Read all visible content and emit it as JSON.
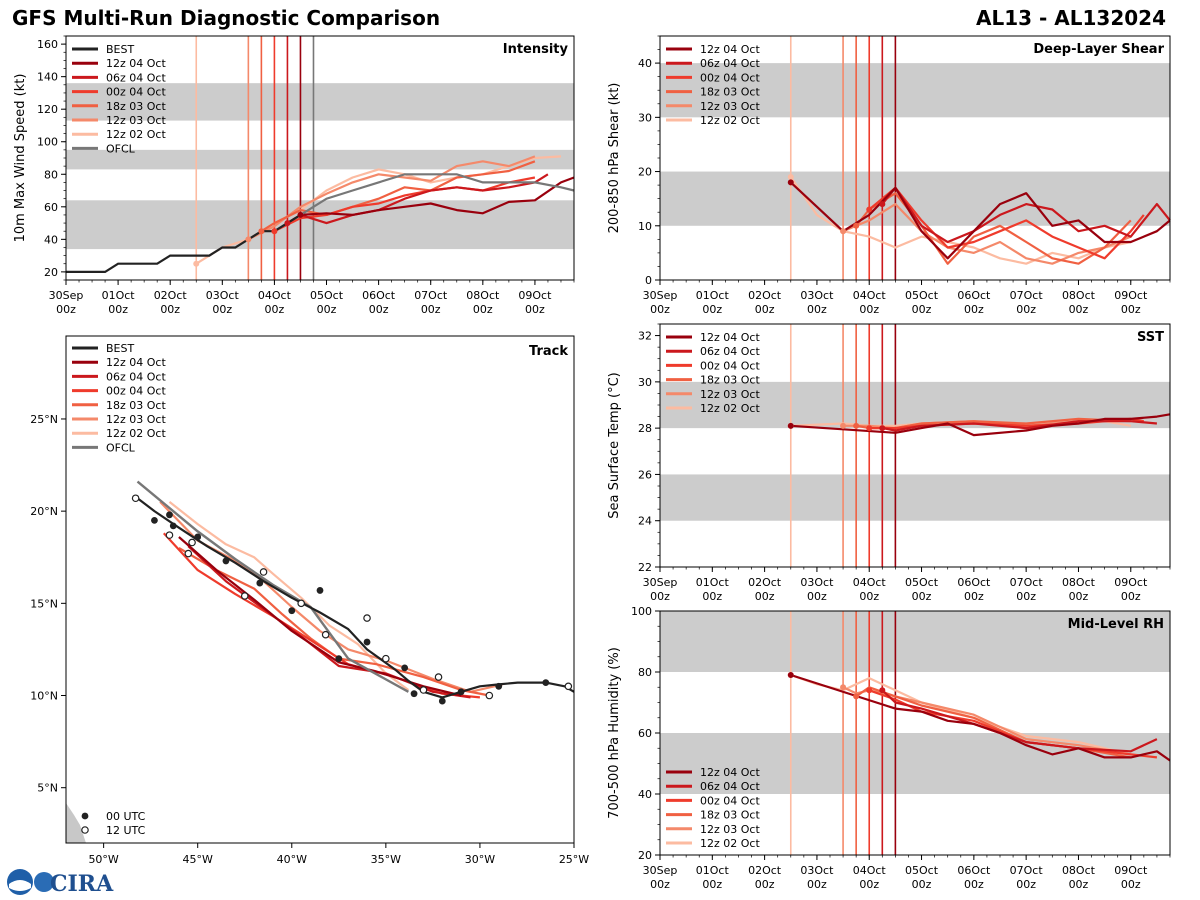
{
  "title_left": "GFS Multi-Run Diagnostic Comparison",
  "title_right": "AL13 - AL132024",
  "logo_text": "CIRA",
  "time_axis": {
    "ticks": [
      "30Sep\n00z",
      "01Oct\n00z",
      "02Oct\n00z",
      "03Oct\n00z",
      "04Oct\n00z",
      "05Oct\n00z",
      "06Oct\n00z",
      "07Oct\n00z",
      "08Oct\n00z",
      "09Oct\n00z"
    ],
    "range_days": [
      0,
      9.75
    ]
  },
  "runs": [
    {
      "label": "12z 04 Oct",
      "color": "#99000d",
      "init_day": 4.5
    },
    {
      "label": "06z 04 Oct",
      "color": "#cb181d",
      "init_day": 4.25
    },
    {
      "label": "00z 04 Oct",
      "color": "#ef3b2c",
      "init_day": 4.0
    },
    {
      "label": "18z 03 Oct",
      "color": "#f06042",
      "init_day": 3.75
    },
    {
      "label": "12z 03 Oct",
      "color": "#f4896a",
      "init_day": 3.5
    },
    {
      "label": "12z 02 Oct",
      "color": "#fcbba1",
      "init_day": 2.5
    }
  ],
  "best_label": "BEST",
  "best_color": "#222222",
  "ofcl_label": "OFCL",
  "ofcl_color": "#777777",
  "utc_legend": {
    "a": "00 UTC",
    "b": "12 UTC"
  },
  "chart_data": [
    {
      "type": "line",
      "name": "intensity",
      "title": "Intensity",
      "ylabel": "10m Max Wind Speed (kt)",
      "ylim": [
        15,
        165
      ],
      "yticks": [
        20,
        40,
        60,
        80,
        100,
        120,
        140,
        160
      ],
      "bands": [
        [
          34,
          64
        ],
        [
          83,
          95
        ],
        [
          113,
          136
        ]
      ],
      "ofcl_vline_day": 4.75,
      "best": {
        "x": [
          0,
          0.75,
          1,
          1.75,
          2,
          2.75,
          3,
          3.25,
          3.5,
          3.75,
          4,
          4.25,
          4.5
        ],
        "y": [
          20,
          20,
          25,
          25,
          30,
          30,
          35,
          35,
          40,
          45,
          45,
          50,
          55
        ]
      },
      "ofcl": {
        "x": [
          4.5,
          4.75,
          5,
          5.5,
          6,
          6.5,
          7,
          7.5,
          8,
          8.5,
          9,
          9.5,
          9.75
        ],
        "y": [
          55,
          60,
          65,
          70,
          75,
          80,
          80,
          80,
          75,
          75,
          75,
          72,
          70
        ]
      },
      "series": [
        {
          "x": [
            2.5,
            3,
            3.5,
            4,
            4.5,
            5,
            5.5,
            6,
            6.5,
            7,
            7.5,
            8,
            8.5,
            9,
            9.5
          ],
          "y": [
            25,
            35,
            40,
            50,
            58,
            70,
            78,
            83,
            80,
            75,
            78,
            80,
            85,
            90,
            91
          ]
        },
        {
          "x": [
            3.5,
            4,
            4.5,
            5,
            5.5,
            6,
            6.5,
            7,
            7.5,
            8,
            8.5,
            9
          ],
          "y": [
            40,
            48,
            60,
            68,
            75,
            80,
            78,
            76,
            85,
            88,
            85,
            91
          ]
        },
        {
          "x": [
            3.75,
            4,
            4.5,
            5,
            5.5,
            6,
            6.5,
            7,
            7.5,
            8,
            8.5,
            9
          ],
          "y": [
            45,
            50,
            58,
            55,
            60,
            65,
            72,
            70,
            78,
            80,
            82,
            88
          ]
        },
        {
          "x": [
            4,
            4.5,
            5,
            5.5,
            6,
            6.5,
            7,
            7.5,
            8,
            8.5,
            9
          ],
          "y": [
            45,
            53,
            55,
            60,
            62,
            67,
            70,
            72,
            70,
            75,
            78
          ]
        },
        {
          "x": [
            4.25,
            4.5,
            5,
            5.5,
            6,
            6.5,
            7,
            7.5,
            8,
            8.5,
            9,
            9.25
          ],
          "y": [
            50,
            55,
            50,
            55,
            58,
            65,
            70,
            72,
            70,
            72,
            75,
            80
          ]
        },
        {
          "x": [
            4.5,
            5,
            5.5,
            6,
            6.5,
            7,
            7.5,
            8,
            8.5,
            9,
            9.5,
            9.75
          ],
          "y": [
            55,
            56,
            55,
            58,
            60,
            62,
            58,
            56,
            63,
            64,
            75,
            78
          ]
        }
      ]
    },
    {
      "type": "line",
      "name": "shear",
      "title": "Deep-Layer Shear",
      "ylabel": "200-850 hPa Shear (kt)",
      "ylim": [
        0,
        45
      ],
      "yticks": [
        0,
        10,
        20,
        30,
        40
      ],
      "bands": [
        [
          10,
          20
        ],
        [
          30,
          40
        ]
      ],
      "series": [
        {
          "x": [
            2.5,
            3,
            3.5,
            4,
            4.5,
            5,
            5.5,
            6,
            6.5,
            7,
            7.5,
            8,
            8.5,
            9
          ],
          "y": [
            19,
            12,
            9,
            8,
            6,
            8,
            7,
            6,
            4,
            3,
            5,
            4,
            6,
            7
          ]
        },
        {
          "x": [
            3.5,
            4,
            4.5,
            5,
            5.5,
            6,
            6.5,
            7,
            7.5,
            8,
            8.5,
            9
          ],
          "y": [
            9,
            11,
            14,
            9,
            6,
            5,
            7,
            4,
            3,
            5,
            6,
            8
          ]
        },
        {
          "x": [
            3.75,
            4,
            4.5,
            5,
            5.5,
            6,
            6.5,
            7,
            7.5,
            8,
            8.5,
            9
          ],
          "y": [
            10,
            13,
            16,
            10,
            3,
            8,
            10,
            7,
            4,
            3,
            6,
            11
          ]
        },
        {
          "x": [
            4,
            4.5,
            5,
            5.5,
            6,
            6.5,
            7,
            7.5,
            8,
            8.5,
            9,
            9.25
          ],
          "y": [
            13,
            17,
            11,
            6,
            7,
            9,
            11,
            8,
            6,
            4,
            9,
            12
          ]
        },
        {
          "x": [
            4.25,
            4.5,
            5,
            5.5,
            6,
            6.5,
            7,
            7.5,
            8,
            8.5,
            9,
            9.5,
            9.75
          ],
          "y": [
            14,
            17,
            10,
            7,
            9,
            12,
            14,
            13,
            9,
            10,
            8,
            14,
            11
          ]
        },
        {
          "x": [
            2.5,
            3.5,
            4,
            4.5,
            5,
            5.5,
            6,
            6.5,
            7,
            7.5,
            8,
            8.5,
            9,
            9.5,
            9.75
          ],
          "y": [
            18,
            9,
            12,
            17,
            9,
            4,
            9,
            14,
            16,
            10,
            11,
            7,
            7,
            9,
            11
          ]
        }
      ]
    },
    {
      "type": "line",
      "name": "sst",
      "title": "SST",
      "ylabel": "Sea Surface Temp (°C)",
      "ylim": [
        22,
        32.5
      ],
      "yticks": [
        22,
        24,
        26,
        28,
        30,
        32
      ],
      "bands": [
        [
          24,
          26
        ],
        [
          28,
          30
        ]
      ],
      "series": [
        {
          "x": [
            2.5,
            3.5,
            4,
            4.5,
            5,
            6,
            7,
            8,
            8.5,
            9
          ],
          "y": [
            28.1,
            28.2,
            28.1,
            28.1,
            28.2,
            28.3,
            28,
            28.2,
            28.3,
            28.1
          ]
        },
        {
          "x": [
            3.5,
            4,
            4.5,
            5,
            6,
            7,
            8,
            9
          ],
          "y": [
            28.1,
            28.1,
            28,
            28.2,
            28.3,
            28.1,
            28.3,
            28.4
          ]
        },
        {
          "x": [
            3.75,
            4,
            4.5,
            5,
            6,
            7,
            8,
            9
          ],
          "y": [
            28.1,
            28,
            28,
            28.2,
            28.3,
            28.2,
            28.4,
            28.3
          ]
        },
        {
          "x": [
            4,
            4.5,
            5,
            6,
            7,
            8,
            9,
            9.25
          ],
          "y": [
            28,
            28,
            28.1,
            28.2,
            28.1,
            28.2,
            28.4,
            28.3
          ]
        },
        {
          "x": [
            4.25,
            4.5,
            5,
            6,
            7,
            8,
            9,
            9.5
          ],
          "y": [
            28,
            27.9,
            28.1,
            28.2,
            28,
            28.3,
            28.3,
            28.2
          ]
        },
        {
          "x": [
            2.5,
            4.5,
            5,
            5.5,
            6,
            7,
            7.5,
            8,
            8.5,
            9,
            9.5,
            9.75
          ],
          "y": [
            28.1,
            27.8,
            28,
            28.2,
            27.7,
            27.9,
            28.1,
            28.2,
            28.4,
            28.4,
            28.5,
            28.6
          ]
        }
      ]
    },
    {
      "type": "line",
      "name": "rh",
      "title": "Mid-Level RH",
      "ylabel": "700-500 hPa Humidity (%)",
      "ylim": [
        20,
        100
      ],
      "yticks": [
        20,
        40,
        60,
        80,
        100
      ],
      "bands": [
        [
          40,
          60
        ],
        [
          80,
          100
        ]
      ],
      "series": [
        {
          "x": [
            2.5,
            3,
            3.5,
            4,
            4.5,
            5,
            6,
            7,
            8,
            9
          ],
          "y": [
            79,
            76,
            74,
            78,
            74,
            70,
            65,
            59,
            57,
            53
          ]
        },
        {
          "x": [
            3.5,
            3.75,
            4,
            4.5,
            5,
            6,
            7,
            8,
            9
          ],
          "y": [
            75,
            73,
            74,
            72,
            70,
            66,
            58,
            56,
            53
          ]
        },
        {
          "x": [
            3.75,
            4,
            4.5,
            5,
            6,
            7,
            8,
            9
          ],
          "y": [
            72,
            75,
            72,
            69,
            65,
            57,
            55,
            52
          ]
        },
        {
          "x": [
            4,
            4.5,
            5,
            6,
            7,
            8,
            9,
            9.5
          ],
          "y": [
            74,
            71,
            67,
            64,
            57,
            55,
            53,
            52
          ]
        },
        {
          "x": [
            4.25,
            4.5,
            5,
            6,
            7,
            8,
            9,
            9.5
          ],
          "y": [
            74,
            70,
            68,
            63,
            57,
            55,
            54,
            58
          ]
        },
        {
          "x": [
            2.5,
            4.5,
            5,
            5.5,
            6,
            6.5,
            7,
            7.5,
            8,
            8.5,
            9,
            9.5,
            9.75
          ],
          "y": [
            79,
            68,
            67,
            64,
            63,
            60,
            56,
            53,
            55,
            52,
            52,
            54,
            51
          ]
        }
      ]
    },
    {
      "type": "scatter",
      "name": "track",
      "title": "Track",
      "xlim": [
        -52,
        -25
      ],
      "ylim": [
        2,
        29.5
      ],
      "xticks": [
        "50°W",
        "45°W",
        "40°W",
        "35°W",
        "30°W",
        "25°W"
      ],
      "xtick_vals": [
        -50,
        -45,
        -40,
        -35,
        -30,
        -25
      ],
      "yticks": [
        "5°N",
        "10°N",
        "15°N",
        "20°N",
        "25°N"
      ],
      "ytick_vals": [
        5,
        10,
        15,
        20,
        25
      ],
      "best": {
        "lon": [
          -25,
          -25.5,
          -26.5,
          -28,
          -29,
          -30,
          -31,
          -32,
          -33,
          -33.8,
          -34.5,
          -36,
          -37,
          -38.5,
          -40,
          -41.5,
          -43,
          -44.5,
          -46,
          -47.3,
          -48.2
        ],
        "lat": [
          10.2,
          10.5,
          10.7,
          10.7,
          10.6,
          10.5,
          10.2,
          9.9,
          10.2,
          10.8,
          11.4,
          12.5,
          13.6,
          14.5,
          15.3,
          16.2,
          17.2,
          18.1,
          19.1,
          20,
          20.7
        ]
      },
      "ofcl": {
        "lon": [
          -33.8,
          -37,
          -39,
          -41,
          -43,
          -45,
          -48.2
        ],
        "lat": [
          10.2,
          12,
          14.8,
          16,
          17.4,
          18.9,
          21.6
        ]
      },
      "fc": [
        {
          "lon": [
            -33.8,
            -35,
            -36.5,
            -38,
            -39.5,
            -41,
            -42,
            -43.5,
            -45,
            -46.5
          ],
          "lat": [
            10.3,
            11.2,
            12.8,
            13.8,
            15.3,
            16.6,
            17.5,
            18.2,
            19.3,
            20.5
          ]
        },
        {
          "lon": [
            -28.8,
            -30.5,
            -32.5,
            -35,
            -37,
            -38.5,
            -40,
            -41.5,
            -43,
            -45,
            -47
          ],
          "lat": [
            10.6,
            10.2,
            10.9,
            11.9,
            12.5,
            13.5,
            14.8,
            16.2,
            17.3,
            18.4,
            20.5
          ]
        },
        {
          "lon": [
            -29.5,
            -31,
            -33,
            -35.5,
            -37.5,
            -39,
            -40.5,
            -42,
            -44,
            -46
          ],
          "lat": [
            10,
            10.3,
            11,
            11.7,
            12,
            13.1,
            14.4,
            15.8,
            16.8,
            18
          ]
        },
        {
          "lon": [
            -30,
            -32,
            -34.5,
            -37,
            -39,
            -41,
            -43,
            -45,
            -46.8
          ],
          "lat": [
            9.9,
            10.1,
            11,
            11.7,
            13,
            14.3,
            15.5,
            16.8,
            18.8
          ]
        },
        {
          "lon": [
            -30.5,
            -32.5,
            -35,
            -37.5,
            -39.5,
            -41.5,
            -43.5,
            -45.5
          ],
          "lat": [
            9.9,
            10.2,
            11.2,
            11.6,
            13.2,
            14.7,
            16.2,
            18.1
          ]
        },
        {
          "lon": [
            -31,
            -33,
            -35.5,
            -37.5,
            -40,
            -42,
            -44,
            -46
          ],
          "lat": [
            10,
            10.5,
            11.3,
            11.8,
            13.5,
            15.2,
            16.8,
            18.6
          ]
        }
      ],
      "points00": {
        "lon": [
          -26.5,
          -29,
          -31,
          -32,
          -33.5,
          -34,
          -36,
          -37.5,
          -38.5,
          -40,
          -41.7,
          -43.5,
          -45,
          -46.3,
          -46.5,
          -47.3
        ],
        "lat": [
          10.7,
          10.5,
          10.2,
          9.7,
          10.1,
          11.5,
          12.9,
          12,
          15.7,
          14.6,
          16.1,
          17.3,
          18.6,
          19.2,
          19.8,
          19.5
        ]
      },
      "points12": {
        "lon": [
          -25.3,
          -29.5,
          -32.2,
          -33,
          -35,
          -36,
          -38.2,
          -39.5,
          -41.5,
          -42.5,
          -45.3,
          -45.5,
          -46.5,
          -48.3
        ],
        "lat": [
          10.5,
          10,
          11,
          10.3,
          12,
          14.2,
          13.3,
          15,
          16.7,
          15.4,
          18.3,
          17.7,
          18.7,
          20.7
        ]
      }
    }
  ]
}
